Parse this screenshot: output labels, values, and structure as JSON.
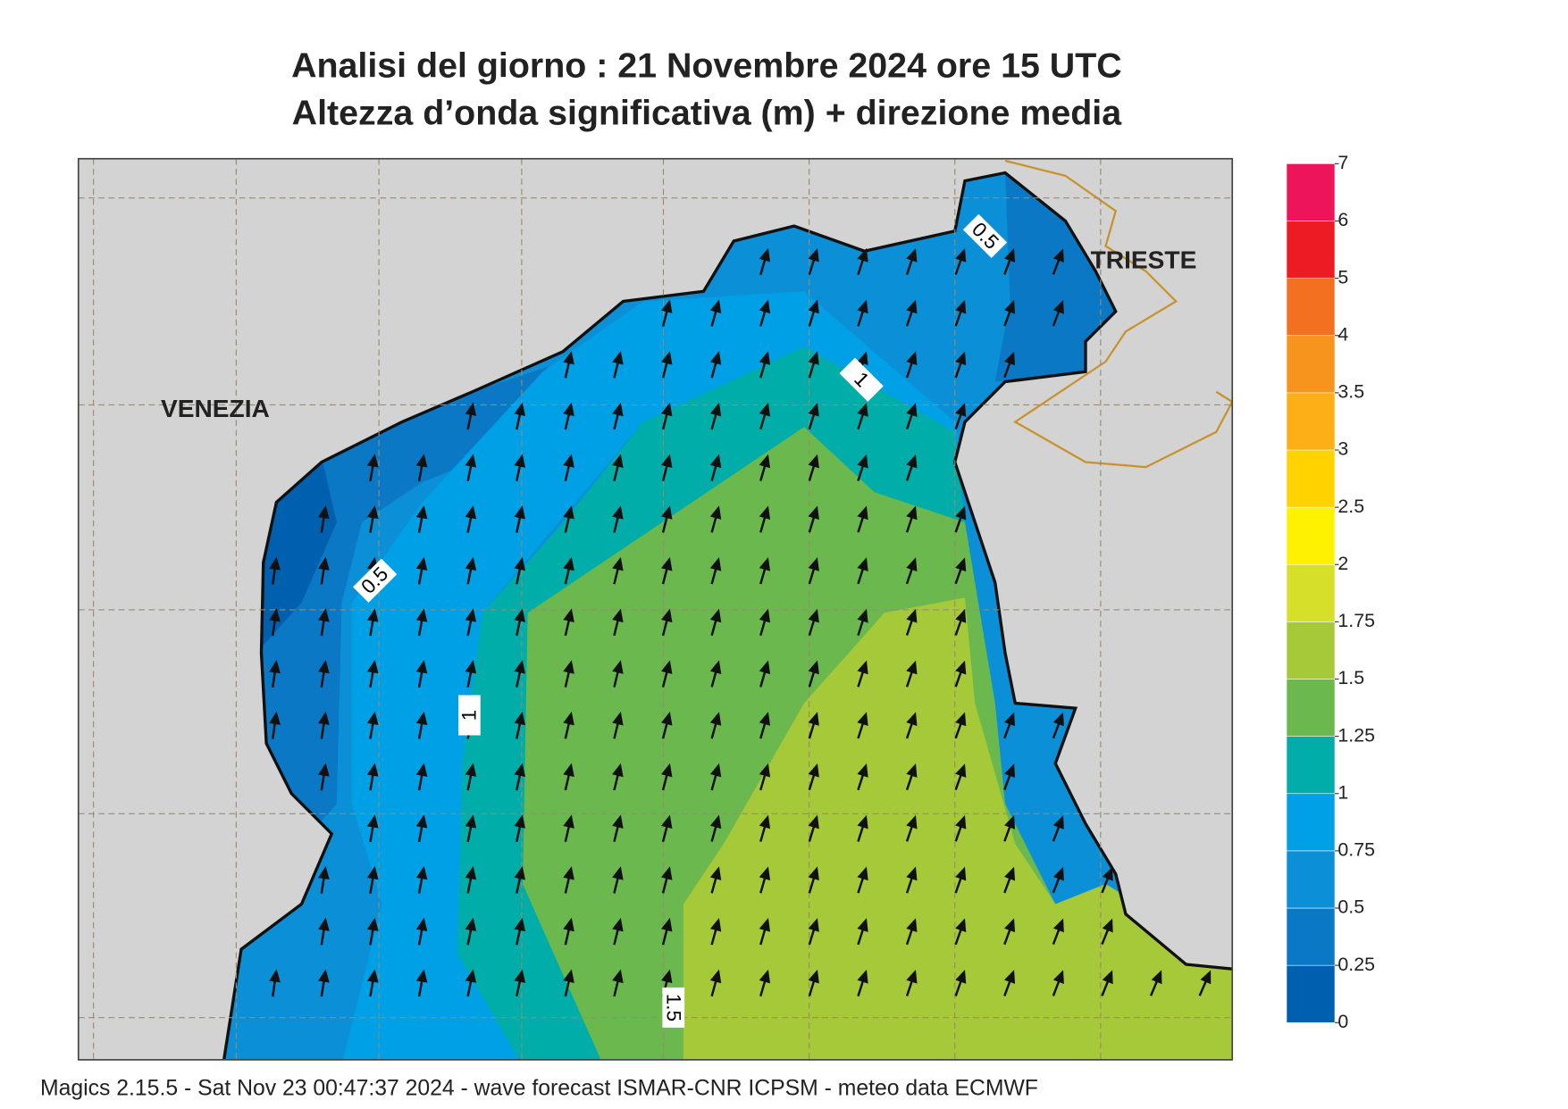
{
  "header": {
    "title": "Analisi del giorno :  21 Novembre  2024   ore 15 UTC",
    "subtitle": "Altezza d’onda significativa (m) + direzione media"
  },
  "map": {
    "labels": [
      "VENEZIA",
      "TRIESTE"
    ],
    "contour_labels": [
      0.5,
      1,
      0.5,
      1,
      1.5
    ]
  },
  "legend": {
    "levels": [
      0,
      0.25,
      0.5,
      0.75,
      1,
      1.25,
      1.5,
      1.75,
      2,
      2.5,
      3,
      3.5,
      4,
      5,
      6,
      7
    ],
    "colors": [
      "#0060b0",
      "#0a78c4",
      "#0b8fd6",
      "#00a0e6",
      "#00ada8",
      "#6ab84e",
      "#a6c93a",
      "#d6e02a",
      "#fff200",
      "#ffd200",
      "#fcaf17",
      "#f7941d",
      "#f37021",
      "#ed1c24",
      "#ed145b"
    ]
  },
  "footer": "Magics 2.15.5 - Sat Nov 23 00:47:37 2024 - wave forecast  ISMAR-CNR  ICPSM - meteo data    ECMWF"
}
